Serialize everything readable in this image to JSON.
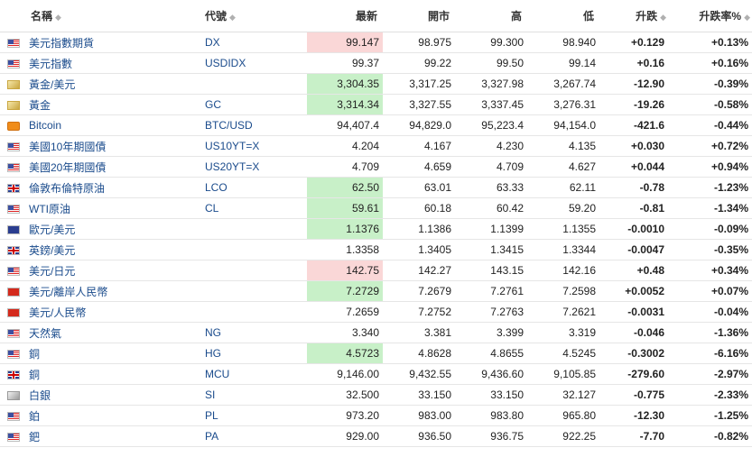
{
  "headers": {
    "name": "名稱",
    "code": "代號",
    "last": "最新",
    "open": "開市",
    "high": "高",
    "low": "低",
    "change": "升跌",
    "change_pct": "升跌率%"
  },
  "icons": {
    "sort": "sort-arrows-icon"
  },
  "colors": {
    "up": "#1a9a1a",
    "down": "#d40000",
    "highlight_green": "#c8f0c8",
    "highlight_red": "#fad7d7",
    "link": "#1a4b8c"
  },
  "rows": [
    {
      "flag": "us",
      "name": "美元指數期貨",
      "code": "DX",
      "last": "99.147",
      "open": "98.975",
      "high": "99.300",
      "low": "98.940",
      "change": "+0.129",
      "change_pct": "+0.13%",
      "dir": "up",
      "hl": "red"
    },
    {
      "flag": "us",
      "name": "美元指數",
      "code": "USDIDX",
      "last": "99.37",
      "open": "99.22",
      "high": "99.50",
      "low": "99.14",
      "change": "+0.16",
      "change_pct": "+0.16%",
      "dir": "up",
      "hl": ""
    },
    {
      "flag": "gold",
      "name": "黃金/美元",
      "code": "",
      "last": "3,304.35",
      "open": "3,317.25",
      "high": "3,327.98",
      "low": "3,267.74",
      "change": "-12.90",
      "change_pct": "-0.39%",
      "dir": "down",
      "hl": "green"
    },
    {
      "flag": "gold",
      "name": "黃金",
      "code": "GC",
      "last": "3,314.34",
      "open": "3,327.55",
      "high": "3,337.45",
      "low": "3,276.31",
      "change": "-19.26",
      "change_pct": "-0.58%",
      "dir": "down",
      "hl": "green"
    },
    {
      "flag": "btc",
      "name": "Bitcoin",
      "code": "BTC/USD",
      "last": "94,407.4",
      "open": "94,829.0",
      "high": "95,223.4",
      "low": "94,154.0",
      "change": "-421.6",
      "change_pct": "-0.44%",
      "dir": "down",
      "hl": ""
    },
    {
      "flag": "us",
      "name": "美國10年期國債",
      "code": "US10YT=X",
      "last": "4.204",
      "open": "4.167",
      "high": "4.230",
      "low": "4.135",
      "change": "+0.030",
      "change_pct": "+0.72%",
      "dir": "up",
      "hl": ""
    },
    {
      "flag": "us",
      "name": "美國20年期國債",
      "code": "US20YT=X",
      "last": "4.709",
      "open": "4.659",
      "high": "4.709",
      "low": "4.627",
      "change": "+0.044",
      "change_pct": "+0.94%",
      "dir": "up",
      "hl": ""
    },
    {
      "flag": "uk",
      "name": "倫敦布倫特原油",
      "code": "LCO",
      "last": "62.50",
      "open": "63.01",
      "high": "63.33",
      "low": "62.11",
      "change": "-0.78",
      "change_pct": "-1.23%",
      "dir": "down",
      "hl": "green"
    },
    {
      "flag": "us",
      "name": "WTI原油",
      "code": "CL",
      "last": "59.61",
      "open": "60.18",
      "high": "60.42",
      "low": "59.20",
      "change": "-0.81",
      "change_pct": "-1.34%",
      "dir": "down",
      "hl": "green"
    },
    {
      "flag": "eu",
      "name": "歐元/美元",
      "code": "",
      "last": "1.1376",
      "open": "1.1386",
      "high": "1.1399",
      "low": "1.1355",
      "change": "-0.0010",
      "change_pct": "-0.09%",
      "dir": "down",
      "hl": "green"
    },
    {
      "flag": "uk",
      "name": "英鎊/美元",
      "code": "",
      "last": "1.3358",
      "open": "1.3405",
      "high": "1.3415",
      "low": "1.3344",
      "change": "-0.0047",
      "change_pct": "-0.35%",
      "dir": "down",
      "hl": ""
    },
    {
      "flag": "us",
      "name": "美元/日元",
      "code": "",
      "last": "142.75",
      "open": "142.27",
      "high": "143.15",
      "low": "142.16",
      "change": "+0.48",
      "change_pct": "+0.34%",
      "dir": "up",
      "hl": "red"
    },
    {
      "flag": "cn",
      "name": "美元/離岸人民幣",
      "code": "",
      "last": "7.2729",
      "open": "7.2679",
      "high": "7.2761",
      "low": "7.2598",
      "change": "+0.0052",
      "change_pct": "+0.07%",
      "dir": "up",
      "hl": "green"
    },
    {
      "flag": "cn",
      "name": "美元/人民幣",
      "code": "",
      "last": "7.2659",
      "open": "7.2752",
      "high": "7.2763",
      "low": "7.2621",
      "change": "-0.0031",
      "change_pct": "-0.04%",
      "dir": "down",
      "hl": ""
    },
    {
      "flag": "us",
      "name": "天然氣",
      "code": "NG",
      "last": "3.340",
      "open": "3.381",
      "high": "3.399",
      "low": "3.319",
      "change": "-0.046",
      "change_pct": "-1.36%",
      "dir": "down",
      "hl": ""
    },
    {
      "flag": "us",
      "name": "銅",
      "code": "HG",
      "last": "4.5723",
      "open": "4.8628",
      "high": "4.8655",
      "low": "4.5245",
      "change": "-0.3002",
      "change_pct": "-6.16%",
      "dir": "down",
      "hl": "green"
    },
    {
      "flag": "uk",
      "name": "銅",
      "code": "MCU",
      "last": "9,146.00",
      "open": "9,432.55",
      "high": "9,436.60",
      "low": "9,105.85",
      "change": "-279.60",
      "change_pct": "-2.97%",
      "dir": "down",
      "hl": ""
    },
    {
      "flag": "silver",
      "name": "白銀",
      "code": "SI",
      "last": "32.500",
      "open": "33.150",
      "high": "33.150",
      "low": "32.127",
      "change": "-0.775",
      "change_pct": "-2.33%",
      "dir": "down",
      "hl": ""
    },
    {
      "flag": "us",
      "name": "鉑",
      "code": "PL",
      "last": "973.20",
      "open": "983.00",
      "high": "983.80",
      "low": "965.80",
      "change": "-12.30",
      "change_pct": "-1.25%",
      "dir": "down",
      "hl": ""
    },
    {
      "flag": "us",
      "name": "鈀",
      "code": "PA",
      "last": "929.00",
      "open": "936.50",
      "high": "936.75",
      "low": "922.25",
      "change": "-7.70",
      "change_pct": "-0.82%",
      "dir": "down",
      "hl": ""
    }
  ]
}
